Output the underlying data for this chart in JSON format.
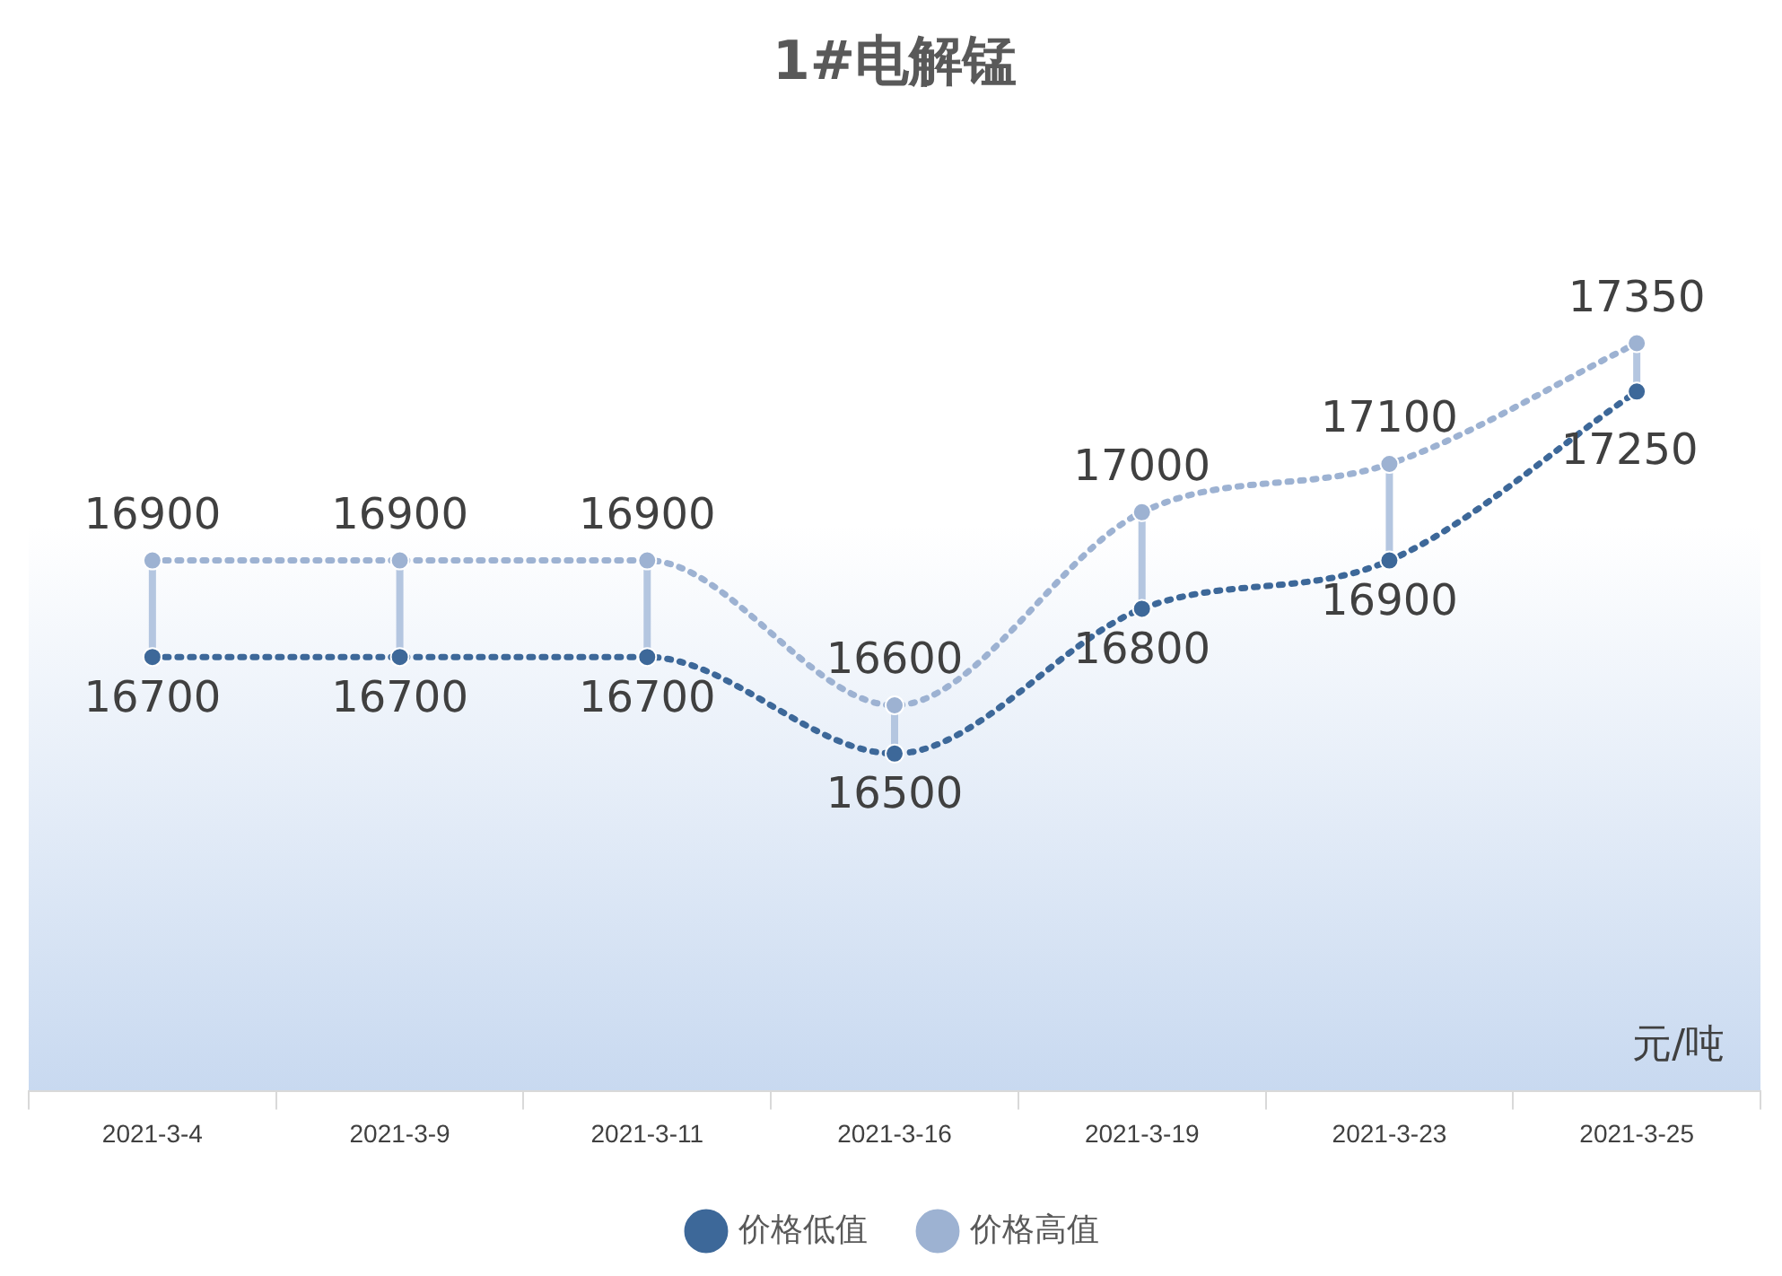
{
  "chart_data": {
    "type": "line",
    "title": "1#电解锰",
    "categories": [
      "2021-3-4",
      "2021-3-9",
      "2021-3-11",
      "2021-3-16",
      "2021-3-19",
      "2021-3-23",
      "2021-3-25"
    ],
    "series": [
      {
        "name": "价格低值",
        "color": "#3d6899",
        "values": [
          16700,
          16700,
          16700,
          16500,
          16800,
          16900,
          17250
        ]
      },
      {
        "name": "价格高值",
        "color": "#9db2d2",
        "values": [
          16900,
          16900,
          16900,
          16600,
          17000,
          17100,
          17350
        ]
      }
    ],
    "annotations": [
      "元/吨"
    ],
    "data_labels": true,
    "legend": "bottom",
    "grid": false,
    "marker": "circle",
    "line_style": "dotted"
  }
}
